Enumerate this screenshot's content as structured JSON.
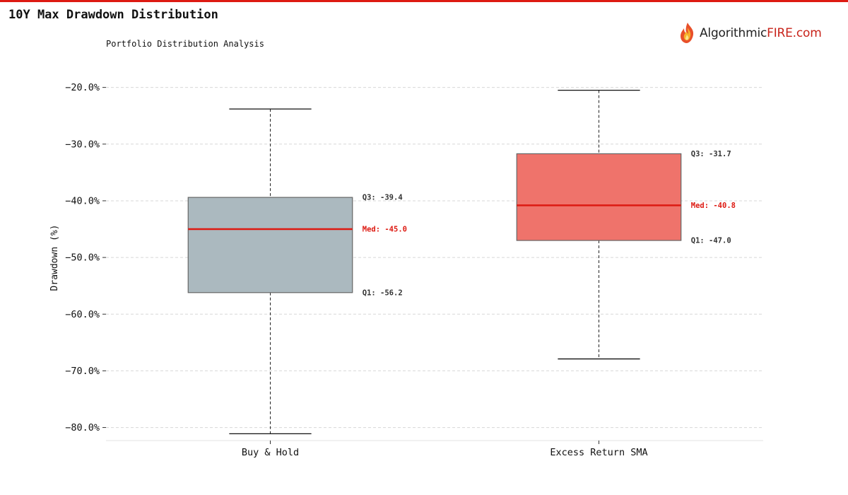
{
  "header": {
    "title": "10Y Max Drawdown Distribution",
    "subtitle": "Portfolio Distribution Analysis"
  },
  "brand": {
    "name_part1": "Algorithmic",
    "name_part2": "FIRE.com",
    "icon": "flame-logo-icon",
    "accent_color": "#dd1a12"
  },
  "chart_data": {
    "type": "box",
    "title": "10Y Max Drawdown Distribution",
    "subtitle": "Portfolio Distribution Analysis",
    "ylabel": "Drawdown (%)",
    "xlabel": "",
    "ylim": [
      -82.3,
      -17.8
    ],
    "yticks": [
      -20,
      -30,
      -40,
      -50,
      -60,
      -70,
      -80
    ],
    "ytick_labels": [
      "−20.0%",
      "−30.0%",
      "−40.0%",
      "−50.0%",
      "−60.0%",
      "−70.0%",
      "−80.0%"
    ],
    "grid": "horizontal dashed",
    "categories": [
      "Buy & Hold",
      "Excess Return SMA"
    ],
    "boxes": [
      {
        "category": "Buy & Hold",
        "whisker_high": -23.8,
        "q3": -39.4,
        "median": -45.0,
        "q1": -56.2,
        "whisker_low": -81.1,
        "color": "#abb9bf",
        "labels": {
          "q3": "Q3: -39.4",
          "median": "Med: -45.0",
          "q1": "Q1: -56.2"
        }
      },
      {
        "category": "Excess Return SMA",
        "whisker_high": -20.5,
        "q3": -31.7,
        "median": -40.8,
        "q1": -47.0,
        "whisker_low": -67.9,
        "color": "#ef736b",
        "labels": {
          "q3": "Q3: -31.7",
          "median": "Med: -40.8",
          "q1": "Q1: -47.0"
        }
      }
    ],
    "median_color": "#dd1a12"
  }
}
